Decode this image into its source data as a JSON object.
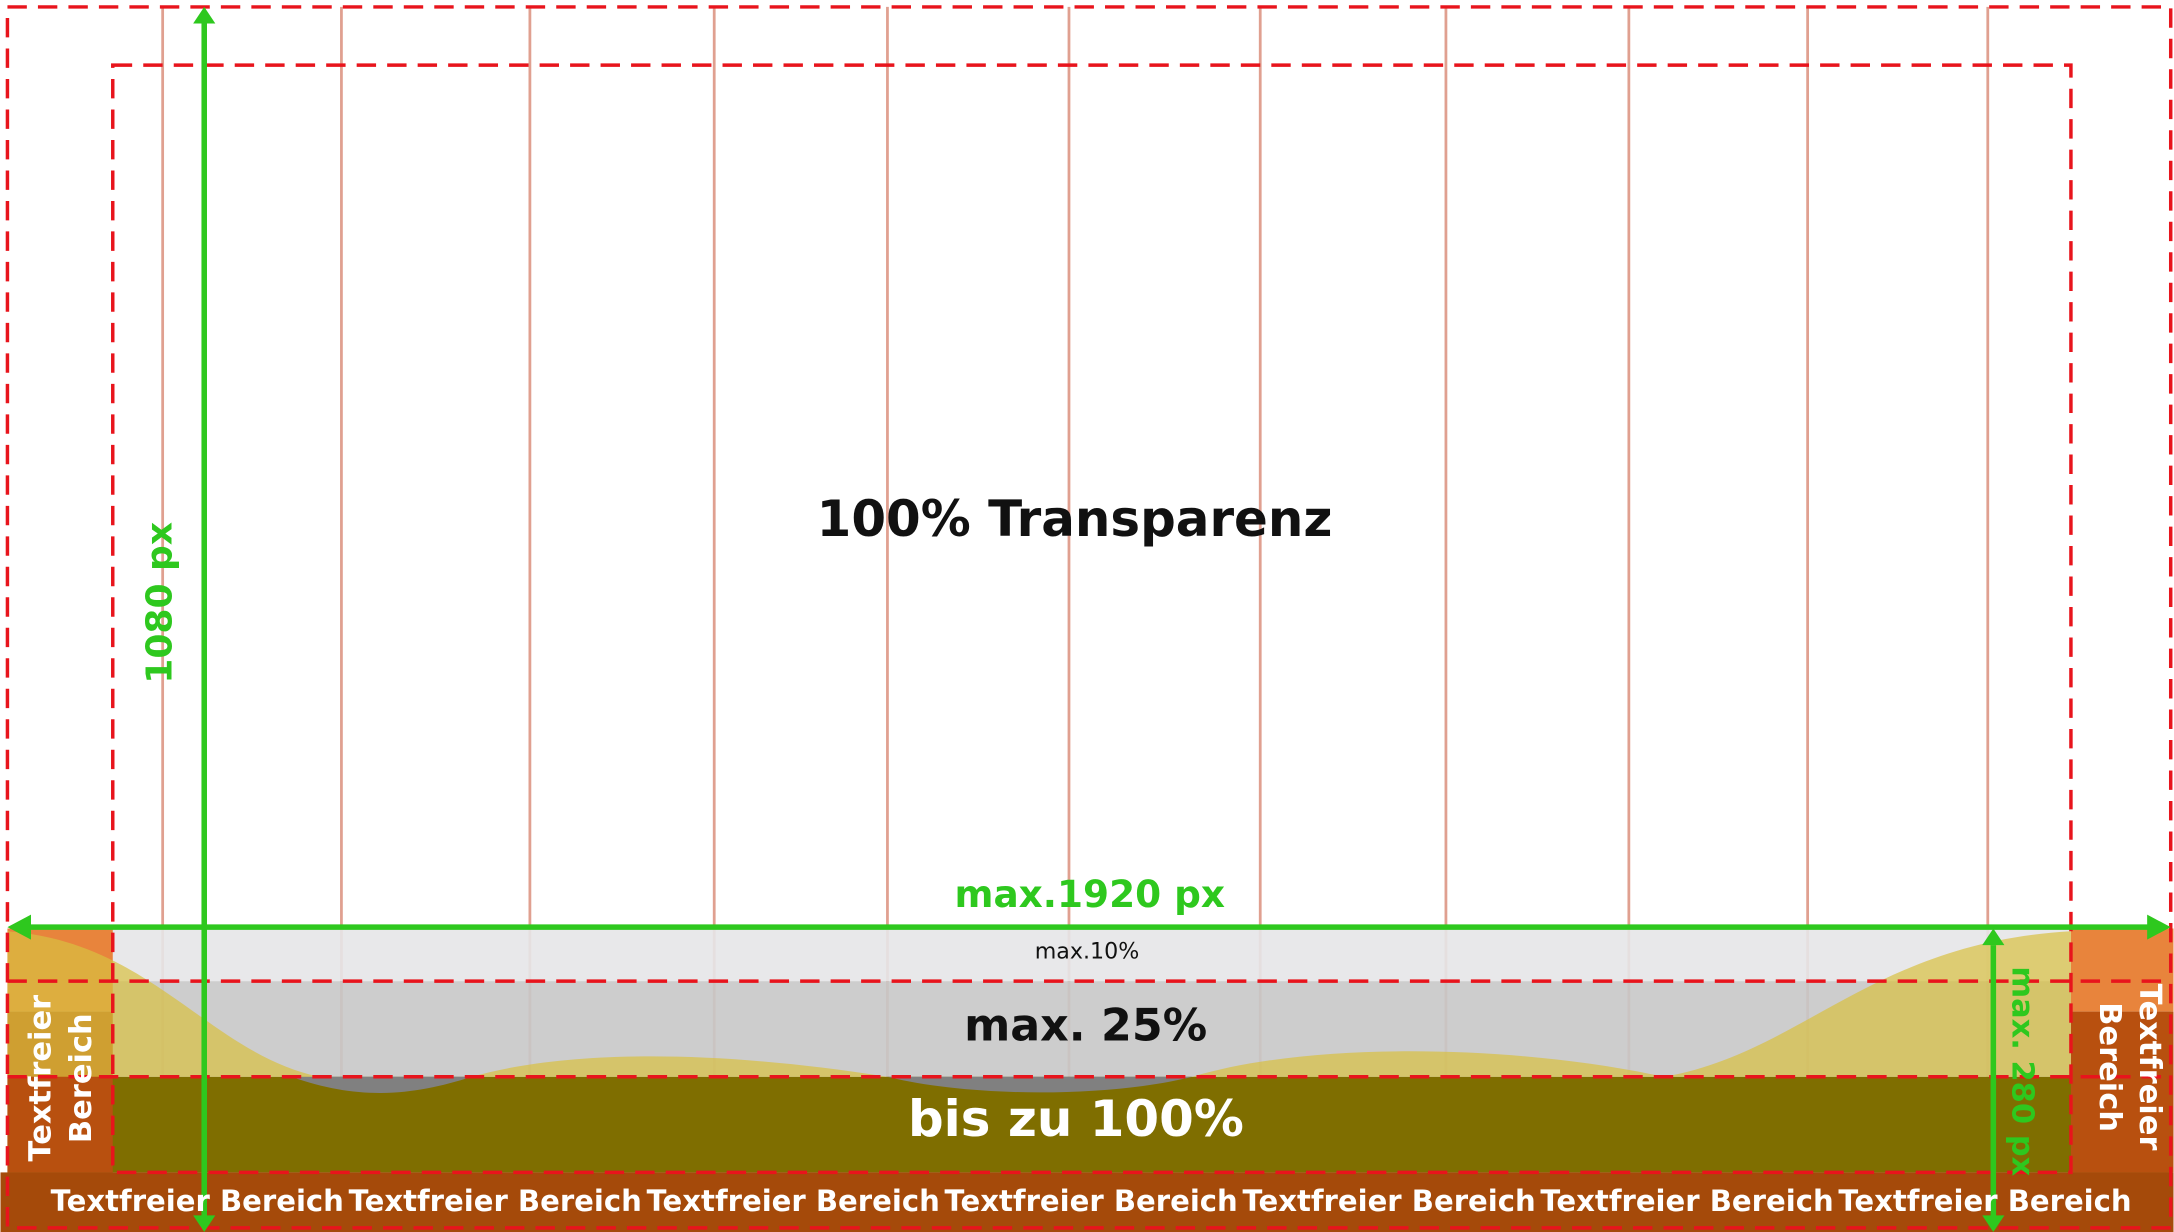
{
  "title": "100% Transparenz",
  "dimensions": {
    "height": "1080 px",
    "width": "max.1920 px",
    "bottom_height": "max. 280 px"
  },
  "zones": {
    "top": "max.10%",
    "middle": "max. 25%",
    "bottom": "bis zu 100%"
  },
  "side_labels": {
    "left": [
      "Textfreier",
      "Bereich"
    ],
    "right": [
      "Textfreier",
      "Bereich"
    ]
  },
  "bottom_labels": [
    "Textfreier Bereich",
    "Textfreier Bereich",
    "Textfreier Bereich",
    "Textfreier Bereich",
    "Textfreier Bereich",
    "Textfreier Bereich",
    "Textfreier Bereich"
  ]
}
